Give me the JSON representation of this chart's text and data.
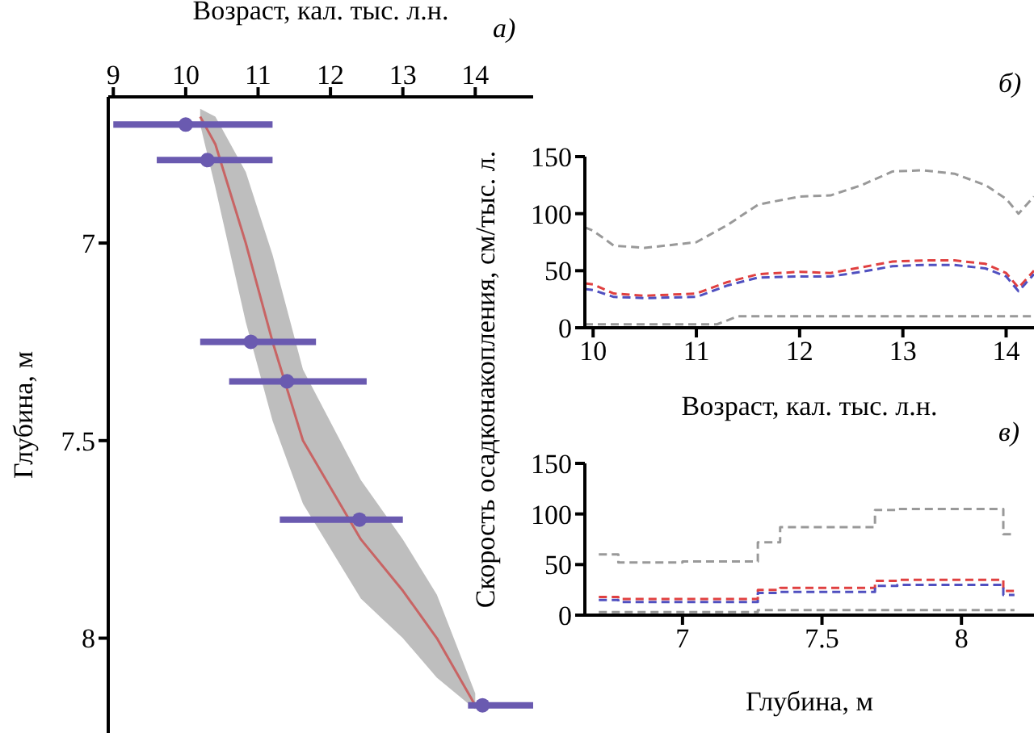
{
  "chart_data": [
    {
      "type": "line",
      "xlabel": "Возраст, кал. тыс. л.н.",
      "ylabel": "Глубина, м",
      "annotations": [
        "a)"
      ],
      "xlim": [
        8.93,
        14.8
      ],
      "xticks": [
        9,
        10,
        11,
        12,
        13,
        14
      ],
      "ylim": [
        8.24,
        6.63
      ],
      "yticks": [
        7,
        7.5,
        8
      ],
      "legend": false,
      "grid": false,
      "series": [
        {
          "color": "#c86464",
          "line_style": "solid",
          "marker": "none",
          "x": [
            10.2,
            10.41,
            10.83,
            11.2,
            11.62,
            12.42,
            13.0,
            13.47,
            14.0
          ],
          "values": [
            6.68,
            6.75,
            7.0,
            7.25,
            7.5,
            7.75,
            7.88,
            8.0,
            8.17
          ],
          "lower": [
            6.66,
            6.68,
            6.82,
            7.03,
            7.32,
            7.6,
            7.75,
            7.89,
            8.14
          ],
          "upper": [
            6.7,
            6.86,
            7.2,
            7.45,
            7.66,
            7.9,
            8.0,
            8.1,
            8.18
          ]
        },
        {
          "type": "scatter",
          "color": "#6a5ab0",
          "marker": "circle",
          "x": [
            10.0,
            10.3,
            10.9,
            11.4,
            12.4,
            14.1
          ],
          "values": [
            6.7,
            6.79,
            7.25,
            7.35,
            7.7,
            8.17
          ],
          "xerrors": [
            [
              9.0,
              11.2
            ],
            [
              9.6,
              11.2
            ],
            [
              10.2,
              11.8
            ],
            [
              10.6,
              12.5
            ],
            [
              11.3,
              13.0
            ],
            [
              13.9,
              14.8
            ]
          ]
        }
      ]
    },
    {
      "type": "line",
      "xlabel": "Возраст, кал. тыс. л.н.",
      "ylabel": "Скорость осадконакопления, см/тыс. л.",
      "annotations": [
        "б)"
      ],
      "xlim": [
        9.92,
        14.27
      ],
      "xticks": [
        10,
        11,
        12,
        13,
        14
      ],
      "ylim": [
        0,
        150
      ],
      "yticks": [
        0,
        50,
        100,
        150
      ],
      "legend": false,
      "grid": false,
      "series": [
        {
          "color": "#999999",
          "line_style": "dashed",
          "marker": "none",
          "x": [
            9.92,
            10.0,
            10.2,
            10.5,
            11.0,
            11.3,
            11.6,
            12.0,
            12.3,
            12.6,
            12.9,
            13.2,
            13.5,
            13.8,
            14.0,
            14.12,
            14.27
          ],
          "values": [
            88,
            85,
            72,
            70,
            75,
            90,
            108,
            115,
            116,
            125,
            137,
            138,
            135,
            125,
            113,
            100,
            115
          ]
        },
        {
          "color": "#e04040",
          "line_style": "dashed",
          "marker": "none",
          "x": [
            9.92,
            10.0,
            10.2,
            10.5,
            11.0,
            11.3,
            11.6,
            12.0,
            12.3,
            12.6,
            12.9,
            13.2,
            13.5,
            13.8,
            14.0,
            14.12,
            14.27
          ],
          "values": [
            39,
            38,
            30,
            28,
            30,
            40,
            47,
            49,
            48,
            53,
            58,
            59,
            59,
            56,
            48,
            35,
            50
          ]
        },
        {
          "color": "#5050c0",
          "line_style": "dashed",
          "marker": "none",
          "x": [
            9.92,
            10.0,
            10.2,
            10.5,
            11.0,
            11.3,
            11.6,
            12.0,
            12.3,
            12.6,
            12.9,
            13.2,
            13.5,
            13.8,
            14.0,
            14.12,
            14.27
          ],
          "values": [
            34,
            33,
            27,
            26,
            27,
            37,
            44,
            45,
            45,
            49,
            54,
            55,
            55,
            52,
            45,
            32,
            47
          ]
        },
        {
          "color": "#999999",
          "line_style": "dashed",
          "marker": "none",
          "x": [
            9.92,
            10.0,
            10.5,
            11.0,
            11.2,
            11.4,
            12.0,
            13.0,
            14.0,
            14.27
          ],
          "values": [
            3,
            3,
            3,
            3,
            3,
            10,
            10,
            10,
            10,
            10
          ]
        }
      ]
    },
    {
      "type": "step",
      "xlabel": "Глубина, м",
      "annotations": [
        "в)"
      ],
      "xlim": [
        6.65,
        8.26
      ],
      "xticks": [
        7,
        7.5,
        8
      ],
      "ylim": [
        0,
        150
      ],
      "yticks": [
        0,
        50,
        100,
        150
      ],
      "legend": false,
      "grid": false,
      "series": [
        {
          "color": "#999999",
          "line_style": "dashed",
          "marker": "none",
          "x": [
            6.7,
            6.77,
            7.0,
            7.27,
            7.35,
            7.69,
            7.77,
            8.15,
            8.19
          ],
          "values": [
            60,
            52,
            53,
            72,
            87,
            104,
            105,
            80,
            80
          ]
        },
        {
          "color": "#e04040",
          "line_style": "dashed",
          "marker": "none",
          "x": [
            6.7,
            6.77,
            7.0,
            7.27,
            7.35,
            7.69,
            7.77,
            8.15,
            8.19
          ],
          "values": [
            18,
            16,
            16,
            25,
            27,
            34,
            35,
            24,
            24
          ]
        },
        {
          "color": "#5050c0",
          "line_style": "dashed",
          "marker": "none",
          "x": [
            6.7,
            6.77,
            7.0,
            7.27,
            7.35,
            7.69,
            7.77,
            8.15,
            8.19
          ],
          "values": [
            15,
            13,
            13,
            22,
            23,
            29,
            30,
            20,
            20
          ]
        },
        {
          "color": "#999999",
          "line_style": "dashed",
          "marker": "none",
          "x": [
            6.7,
            6.77,
            7.0,
            7.27,
            7.35,
            7.69,
            7.77,
            8.15,
            8.19
          ],
          "values": [
            3,
            3,
            3,
            5,
            5,
            5,
            5,
            5,
            5
          ]
        }
      ]
    }
  ]
}
